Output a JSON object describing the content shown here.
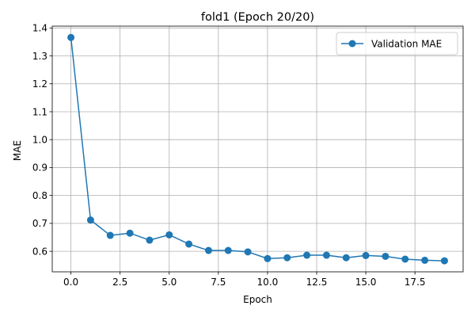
{
  "chart_data": {
    "type": "line",
    "title": "fold1 (Epoch 20/20)",
    "xlabel": "Epoch",
    "ylabel": "MAE",
    "xlim": [
      -0.95,
      19.95
    ],
    "ylim": [
      0.5265,
      1.4065
    ],
    "xticks": [
      0,
      2.5,
      5,
      7.5,
      10,
      12.5,
      15,
      17.5
    ],
    "xtick_labels": [
      "0.0",
      "2.5",
      "5.0",
      "7.5",
      "10.0",
      "12.5",
      "15.0",
      "17.5"
    ],
    "yticks": [
      0.6,
      0.7,
      0.8,
      0.9,
      1.0,
      1.1,
      1.2,
      1.3,
      1.4
    ],
    "ytick_labels": [
      "0.6",
      "0.7",
      "0.8",
      "0.9",
      "1.0",
      "1.1",
      "1.2",
      "1.3",
      "1.4"
    ],
    "grid": true,
    "legend_position": "top-right",
    "series": [
      {
        "name": "Validation MAE",
        "color": "#1f77b4",
        "marker": "circle",
        "x": [
          0,
          1,
          2,
          3,
          4,
          5,
          6,
          7,
          8,
          9,
          10,
          11,
          12,
          13,
          14,
          15,
          16,
          17,
          18,
          19
        ],
        "values": [
          1.366,
          0.712,
          0.657,
          0.665,
          0.64,
          0.659,
          0.626,
          0.603,
          0.603,
          0.598,
          0.574,
          0.577,
          0.586,
          0.586,
          0.577,
          0.585,
          0.582,
          0.572,
          0.568,
          0.566
        ]
      }
    ]
  }
}
